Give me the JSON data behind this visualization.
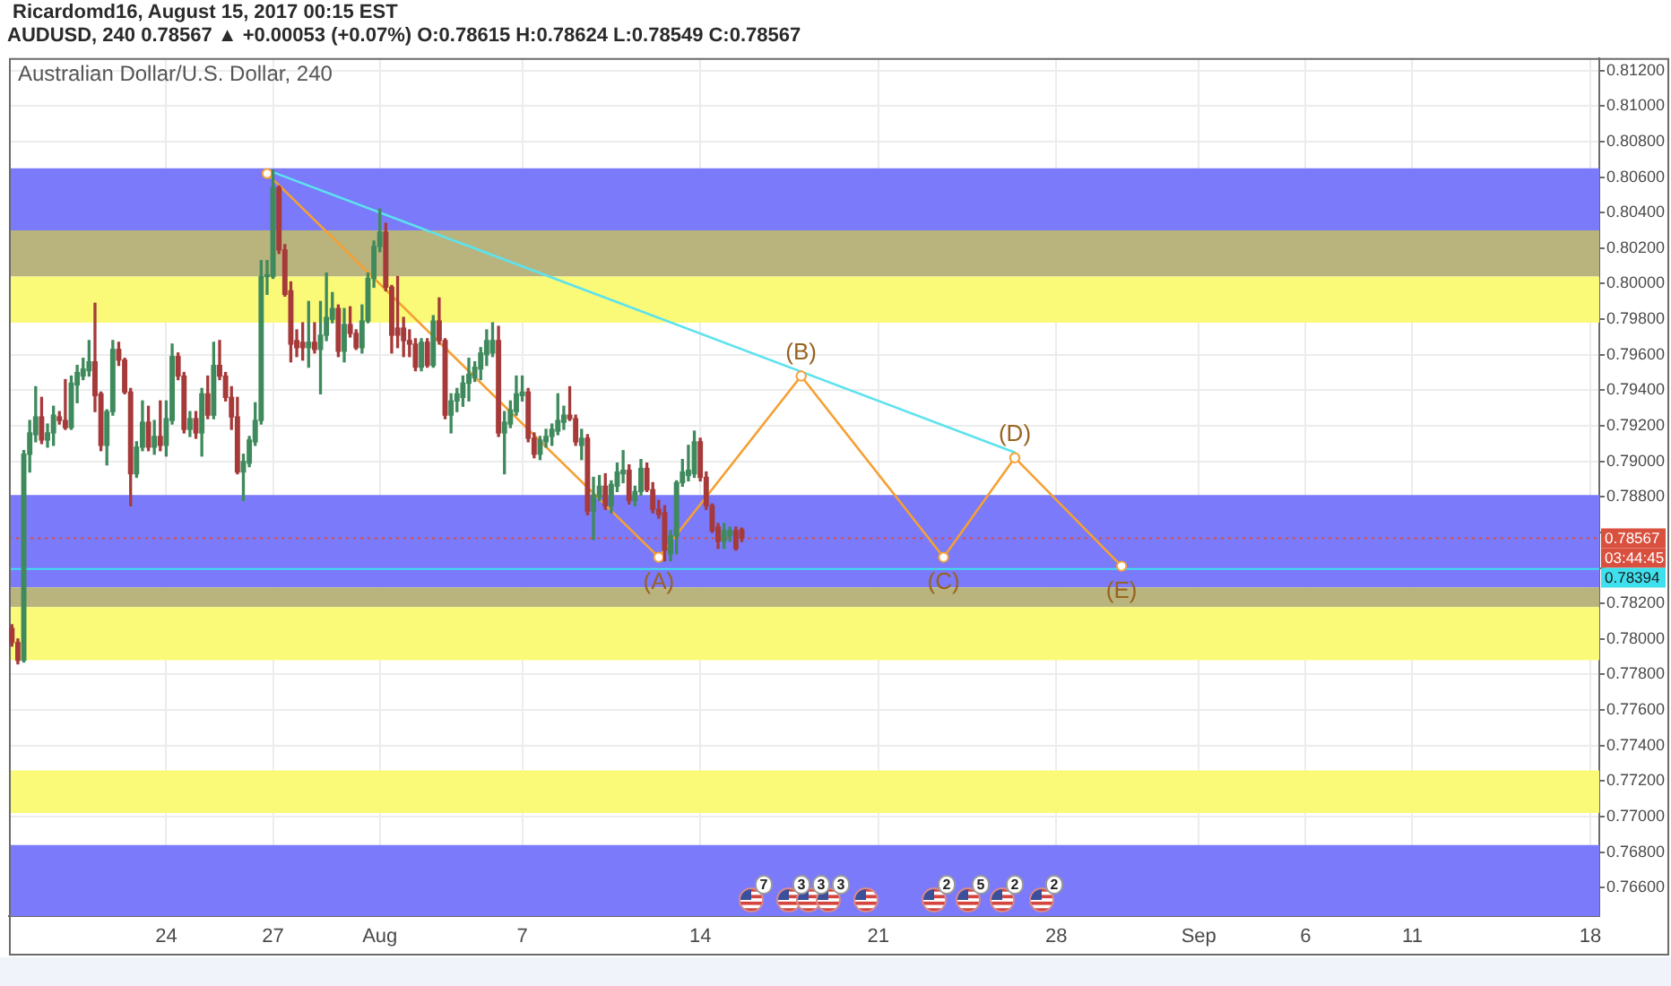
{
  "chart_data": {
    "type": "candlestick",
    "title": "Ricardomd16, August 15, 2017 00:15 EST",
    "subtitle": "AUDUSD, 240 0.78567 ▲ +0.00053 (+0.07%) O:0.78615 H:0.78624 L:0.78549 C:0.78567",
    "categories": [
      null,
      null,
      null,
      null,
      null,
      null,
      null,
      null,
      null,
      null,
      null,
      null,
      null,
      null,
      null,
      null,
      null,
      null,
      null,
      null,
      null,
      null,
      null,
      null,
      null,
      null,
      "24",
      null,
      null,
      null,
      null,
      null,
      null,
      null,
      null,
      null,
      null,
      null,
      null,
      null,
      null,
      null,
      null,
      null,
      "27",
      null,
      null,
      null,
      null,
      null,
      null,
      null,
      null,
      null,
      null,
      null,
      null,
      null,
      null,
      null,
      null,
      null,
      "Aug",
      null,
      null,
      null,
      null,
      null,
      null,
      null,
      null,
      null,
      null,
      null,
      null,
      null,
      null,
      null,
      null,
      null,
      null,
      null,
      null,
      null,
      null,
      null,
      "7",
      null,
      null,
      null,
      null,
      null,
      null,
      null,
      null,
      null,
      null,
      null,
      null,
      null,
      null,
      null,
      null,
      null,
      null,
      null,
      null,
      null,
      null,
      null,
      null,
      null,
      null,
      null,
      null,
      null,
      "14",
      null,
      null,
      null,
      null,
      null,
      null,
      null,
      null,
      null,
      null,
      null,
      null,
      null,
      null,
      null,
      null,
      null,
      null,
      null,
      null,
      null,
      null,
      null,
      null,
      null,
      null,
      null,
      null,
      null,
      "21",
      null,
      null,
      null,
      null,
      null,
      null,
      null,
      null,
      null,
      null,
      null,
      null,
      null,
      null,
      null,
      null,
      null,
      null,
      null,
      null,
      null,
      null,
      null,
      null,
      null,
      null,
      null,
      null,
      null,
      "28",
      null,
      null,
      null,
      null,
      null,
      null,
      null,
      null,
      null,
      null,
      null,
      null,
      null,
      null,
      null,
      null,
      null,
      null,
      null,
      null,
      null,
      null,
      null,
      "Sep",
      null,
      null,
      null,
      null,
      null,
      null,
      null,
      null,
      null,
      null,
      null,
      null,
      null,
      null,
      null,
      null,
      null,
      "6",
      null,
      null,
      null,
      null,
      null,
      null,
      null,
      null,
      null,
      null,
      null,
      null,
      null,
      null,
      null,
      null,
      null,
      "11",
      null,
      null,
      null,
      null,
      null,
      null,
      null,
      null,
      null,
      null,
      null,
      null,
      null,
      null,
      null,
      null,
      null,
      null,
      null,
      null,
      null,
      null,
      null,
      null,
      null,
      null,
      null,
      null,
      null,
      "18",
      null
    ],
    "ohlc": [
      [
        0.7806,
        0.7808,
        0.7796,
        0.7798
      ],
      [
        0.7798,
        0.78,
        0.7786,
        0.7788
      ],
      [
        0.7788,
        0.7906,
        0.7787,
        0.7904
      ],
      [
        0.7904,
        0.7923,
        0.7894,
        0.7916
      ],
      [
        0.7915,
        0.7942,
        0.7911,
        0.7925
      ],
      [
        0.7925,
        0.7936,
        0.791,
        0.7912
      ],
      [
        0.7912,
        0.7921,
        0.7908,
        0.7916
      ],
      [
        0.7916,
        0.7931,
        0.7909,
        0.7926
      ],
      [
        0.7925,
        0.7928,
        0.7921,
        0.7923
      ],
      [
        0.7923,
        0.7946,
        0.7918,
        0.7919
      ],
      [
        0.7919,
        0.7948,
        0.7918,
        0.7944
      ],
      [
        0.7943,
        0.7954,
        0.7933,
        0.795
      ],
      [
        0.7948,
        0.7958,
        0.7946,
        0.7952
      ],
      [
        0.7951,
        0.7968,
        0.7948,
        0.7956
      ],
      [
        0.7956,
        0.7989,
        0.7928,
        0.7937
      ],
      [
        0.7938,
        0.7939,
        0.7906,
        0.7909
      ],
      [
        0.7909,
        0.7929,
        0.7898,
        0.7928
      ],
      [
        0.7928,
        0.7968,
        0.7926,
        0.7963
      ],
      [
        0.7963,
        0.7967,
        0.7954,
        0.7957
      ],
      [
        0.7957,
        0.7958,
        0.7938,
        0.7939
      ],
      [
        0.7939,
        0.7941,
        0.7875,
        0.7893
      ],
      [
        0.7893,
        0.7911,
        0.7891,
        0.7908
      ],
      [
        0.7908,
        0.7934,
        0.7906,
        0.7922
      ],
      [
        0.7922,
        0.7931,
        0.7906,
        0.7908
      ],
      [
        0.7908,
        0.7923,
        0.7904,
        0.7914
      ],
      [
        0.7914,
        0.7934,
        0.7906,
        0.7909
      ],
      [
        0.7909,
        0.7934,
        0.7903,
        0.7924
      ],
      [
        0.7923,
        0.7966,
        0.7921,
        0.7959
      ],
      [
        0.7959,
        0.7961,
        0.7946,
        0.7948
      ],
      [
        0.7948,
        0.795,
        0.7916,
        0.7918
      ],
      [
        0.7918,
        0.7928,
        0.7914,
        0.7924
      ],
      [
        0.7924,
        0.7928,
        0.7913,
        0.7916
      ],
      [
        0.7916,
        0.7941,
        0.7903,
        0.7938
      ],
      [
        0.7938,
        0.7948,
        0.7924,
        0.7926
      ],
      [
        0.7926,
        0.7967,
        0.7924,
        0.7954
      ],
      [
        0.7954,
        0.7968,
        0.7946,
        0.7948
      ],
      [
        0.7948,
        0.795,
        0.7934,
        0.7936
      ],
      [
        0.7936,
        0.7942,
        0.7918,
        0.7925
      ],
      [
        0.7925,
        0.7936,
        0.7893,
        0.7894
      ],
      [
        0.7894,
        0.7904,
        0.7878,
        0.79
      ],
      [
        0.7899,
        0.7914,
        0.7897,
        0.7912
      ],
      [
        0.7911,
        0.7933,
        0.7909,
        0.7923
      ],
      [
        0.7923,
        0.8013,
        0.7921,
        0.8004
      ],
      [
        0.8004,
        0.8013,
        0.7994,
        0.8005
      ],
      [
        0.8004,
        0.8064,
        0.8003,
        0.8054
      ],
      [
        0.8054,
        0.8055,
        0.8017,
        0.8019
      ],
      [
        0.8019,
        0.8022,
        0.7993,
        0.7994
      ],
      [
        0.7996,
        0.8001,
        0.7956,
        0.7966
      ],
      [
        0.7968,
        0.7974,
        0.7959,
        0.7964
      ],
      [
        0.7967,
        0.7978,
        0.7957,
        0.7964
      ],
      [
        0.7964,
        0.799,
        0.7953,
        0.7967
      ],
      [
        0.7967,
        0.7978,
        0.7961,
        0.7963
      ],
      [
        0.7963,
        0.799,
        0.7938,
        0.7971
      ],
      [
        0.7971,
        0.8006,
        0.7968,
        0.7981
      ],
      [
        0.798,
        0.7995,
        0.7978,
        0.7986
      ],
      [
        0.7986,
        0.7988,
        0.7959,
        0.7962
      ],
      [
        0.7962,
        0.7986,
        0.7956,
        0.7977
      ],
      [
        0.7977,
        0.7987,
        0.797,
        0.7972
      ],
      [
        0.7972,
        0.7974,
        0.7963,
        0.7964
      ],
      [
        0.7964,
        0.7988,
        0.7961,
        0.7979
      ],
      [
        0.7979,
        0.8006,
        0.7978,
        0.8003
      ],
      [
        0.8003,
        0.8024,
        0.7998,
        0.8021
      ],
      [
        0.8021,
        0.8042,
        0.8018,
        0.8029
      ],
      [
        0.8029,
        0.8034,
        0.7996,
        0.7998
      ],
      [
        0.7998,
        0.7999,
        0.7961,
        0.7971
      ],
      [
        0.7975,
        0.8004,
        0.7964,
        0.7971
      ],
      [
        0.7975,
        0.7981,
        0.7959,
        0.7968
      ],
      [
        0.7968,
        0.7974,
        0.7959,
        0.7966
      ],
      [
        0.7966,
        0.7969,
        0.7951,
        0.7953
      ],
      [
        0.7953,
        0.7969,
        0.7951,
        0.7967
      ],
      [
        0.7967,
        0.7969,
        0.7953,
        0.7954
      ],
      [
        0.7954,
        0.7982,
        0.7953,
        0.7979
      ],
      [
        0.7979,
        0.7992,
        0.7966,
        0.7968
      ],
      [
        0.7968,
        0.7969,
        0.7924,
        0.7926
      ],
      [
        0.7926,
        0.7938,
        0.7916,
        0.7934
      ],
      [
        0.7934,
        0.7941,
        0.7928,
        0.7938
      ],
      [
        0.7936,
        0.7948,
        0.7931,
        0.7944
      ],
      [
        0.7944,
        0.7958,
        0.7934,
        0.7949
      ],
      [
        0.7947,
        0.7956,
        0.7945,
        0.7953
      ],
      [
        0.7952,
        0.7964,
        0.7946,
        0.7961
      ],
      [
        0.796,
        0.7974,
        0.7954,
        0.7968
      ],
      [
        0.7961,
        0.7978,
        0.7959,
        0.7968
      ],
      [
        0.7968,
        0.7976,
        0.7914,
        0.7916
      ],
      [
        0.7916,
        0.7928,
        0.7893,
        0.7922
      ],
      [
        0.7921,
        0.7934,
        0.7919,
        0.7929
      ],
      [
        0.7928,
        0.7948,
        0.7926,
        0.7938
      ],
      [
        0.7937,
        0.7948,
        0.7934,
        0.7939
      ],
      [
        0.7939,
        0.7941,
        0.7911,
        0.7913
      ],
      [
        0.7913,
        0.7916,
        0.7902,
        0.7904
      ],
      [
        0.7904,
        0.7914,
        0.7901,
        0.7912
      ],
      [
        0.7911,
        0.7918,
        0.7908,
        0.7914
      ],
      [
        0.7914,
        0.7921,
        0.7909,
        0.7918
      ],
      [
        0.7917,
        0.7938,
        0.7915,
        0.7923
      ],
      [
        0.7922,
        0.7931,
        0.7918,
        0.7926
      ],
      [
        0.7926,
        0.7942,
        0.7923,
        0.7924
      ],
      [
        0.7924,
        0.7926,
        0.7909,
        0.7911
      ],
      [
        0.7909,
        0.7918,
        0.7901,
        0.7913
      ],
      [
        0.7913,
        0.7915,
        0.787,
        0.7872
      ],
      [
        0.7872,
        0.7891,
        0.7856,
        0.7881
      ],
      [
        0.788,
        0.7892,
        0.7878,
        0.7886
      ],
      [
        0.7886,
        0.7893,
        0.7873,
        0.7875
      ],
      [
        0.7875,
        0.7889,
        0.7871,
        0.7887
      ],
      [
        0.7886,
        0.7899,
        0.7883,
        0.7894
      ],
      [
        0.7893,
        0.7906,
        0.7888,
        0.7895
      ],
      [
        0.7895,
        0.7898,
        0.7876,
        0.7878
      ],
      [
        0.7878,
        0.7886,
        0.7875,
        0.7883
      ],
      [
        0.7883,
        0.7901,
        0.7881,
        0.7896
      ],
      [
        0.7896,
        0.7899,
        0.7883,
        0.7884
      ],
      [
        0.7884,
        0.7888,
        0.7871,
        0.7873
      ],
      [
        0.7873,
        0.7878,
        0.7868,
        0.787
      ],
      [
        0.7871,
        0.7875,
        0.7844,
        0.785
      ],
      [
        0.7848,
        0.7861,
        0.7844,
        0.7858
      ],
      [
        0.7858,
        0.7889,
        0.7848,
        0.7888
      ],
      [
        0.7888,
        0.7901,
        0.7886,
        0.7894
      ],
      [
        0.7892,
        0.7909,
        0.7889,
        0.7895
      ],
      [
        0.7893,
        0.7917,
        0.7891,
        0.7911
      ],
      [
        0.7911,
        0.7913,
        0.7889,
        0.7891
      ],
      [
        0.7891,
        0.7894,
        0.7873,
        0.7875
      ],
      [
        0.7875,
        0.7876,
        0.786,
        0.7861
      ],
      [
        0.7863,
        0.7865,
        0.7851,
        0.7855
      ],
      [
        0.7855,
        0.7865,
        0.7851,
        0.7861
      ],
      [
        0.7858,
        0.7863,
        0.7855,
        0.7861
      ],
      [
        0.7861,
        0.7863,
        0.785,
        0.7851
      ],
      [
        0.78615,
        0.78624,
        0.78549,
        0.78567
      ],
      null,
      null,
      null,
      null,
      null,
      null,
      null,
      null,
      null,
      null,
      null,
      null,
      null,
      null,
      null,
      null,
      null,
      null,
      null,
      null,
      null,
      null,
      null,
      null,
      null,
      null,
      null,
      null,
      null,
      null,
      null,
      null,
      null,
      null,
      null,
      null,
      null,
      null,
      null,
      null,
      null,
      null,
      null,
      null,
      null,
      null,
      null,
      null,
      null,
      null,
      null,
      null,
      null,
      null,
      null,
      null,
      null,
      null,
      null,
      null,
      null,
      null,
      null,
      null,
      null,
      null,
      null,
      null,
      null,
      null,
      null,
      null,
      null,
      null,
      null,
      null,
      null,
      null,
      null,
      null,
      null,
      null,
      null,
      null,
      null,
      null,
      null,
      null,
      null,
      null,
      null,
      null,
      null,
      null,
      null,
      null,
      null,
      null,
      null,
      null,
      null,
      null,
      null,
      null,
      null,
      null,
      null,
      null,
      null,
      null,
      null,
      null,
      null,
      null,
      null,
      null,
      null,
      null,
      null,
      null,
      null,
      null,
      null,
      null,
      null,
      null,
      null,
      null,
      null,
      null,
      null,
      null,
      null,
      null,
      null,
      null,
      null,
      null,
      null,
      null,
      null,
      null,
      null,
      null
    ],
    "colors": [
      "#a63a3a",
      "#a63a3a",
      "#3f8a5c",
      "#3f8a5c",
      "#3f8a5c",
      "#a63a3a",
      "#3f8a5c",
      "#3f8a5c",
      "#a63a3a",
      "#a63a3a",
      "#3f8a5c",
      "#3f8a5c",
      "#3f8a5c",
      "#3f8a5c",
      "#a63a3a",
      "#a63a3a",
      "#3f8a5c",
      "#3f8a5c",
      "#a63a3a",
      "#a63a3a",
      "#a63a3a",
      "#3f8a5c",
      "#3f8a5c",
      "#a63a3a",
      "#3f8a5c",
      "#a63a3a",
      "#3f8a5c",
      "#3f8a5c",
      "#a63a3a",
      "#a63a3a",
      "#3f8a5c",
      "#a63a3a",
      "#3f8a5c",
      "#a63a3a",
      "#3f8a5c",
      "#a63a3a",
      "#a63a3a",
      "#a63a3a",
      "#a63a3a",
      "#3f8a5c",
      "#3f8a5c",
      "#3f8a5c",
      "#3f8a5c",
      "#3f8a5c",
      "#3f8a5c",
      "#a63a3a",
      "#a63a3a",
      "#a63a3a",
      "#a63a3a",
      "#a63a3a",
      "#3f8a5c",
      "#a63a3a",
      "#3f8a5c",
      "#3f8a5c",
      "#3f8a5c",
      "#a63a3a",
      "#3f8a5c",
      "#a63a3a",
      "#a63a3a",
      "#3f8a5c",
      "#3f8a5c",
      "#3f8a5c",
      "#3f8a5c",
      "#a63a3a",
      "#a63a3a",
      "#a63a3a",
      "#a63a3a",
      "#a63a3a",
      "#a63a3a",
      "#3f8a5c",
      "#a63a3a",
      "#3f8a5c",
      "#a63a3a",
      "#a63a3a",
      "#3f8a5c",
      "#3f8a5c",
      "#3f8a5c",
      "#3f8a5c",
      "#3f8a5c",
      "#3f8a5c",
      "#3f8a5c",
      "#3f8a5c",
      "#a63a3a",
      "#3f8a5c",
      "#3f8a5c",
      "#3f8a5c",
      "#3f8a5c",
      "#a63a3a",
      "#a63a3a",
      "#3f8a5c",
      "#3f8a5c",
      "#3f8a5c",
      "#3f8a5c",
      "#3f8a5c",
      "#a63a3a",
      "#a63a3a",
      "#3f8a5c",
      "#a63a3a",
      "#3f8a5c",
      "#3f8a5c",
      "#a63a3a",
      "#3f8a5c",
      "#3f8a5c",
      "#3f8a5c",
      "#a63a3a",
      "#3f8a5c",
      "#3f8a5c",
      "#a63a3a",
      "#a63a3a",
      "#a63a3a",
      "#a63a3a",
      "#3f8a5c",
      "#3f8a5c",
      "#3f8a5c",
      "#3f8a5c",
      "#3f8a5c",
      "#a63a3a",
      "#a63a3a",
      "#a63a3a",
      "#a63a3a",
      "#3f8a5c",
      "#3f8a5c",
      "#a63a3a",
      "#a63a3a",
      null,
      null,
      null,
      null,
      null,
      null,
      null,
      null,
      null,
      null,
      null,
      null,
      null,
      null,
      null,
      null,
      null,
      null,
      null,
      null,
      null,
      null,
      null,
      null,
      null,
      null,
      null,
      null,
      null,
      null,
      null,
      null,
      null,
      null,
      null,
      null,
      null,
      null,
      null,
      null,
      null,
      null,
      null,
      null,
      null,
      null,
      null,
      null,
      null,
      null,
      null,
      null,
      null,
      null,
      null,
      null,
      null,
      null,
      null,
      null,
      null,
      null,
      null,
      null,
      null,
      null,
      null,
      null,
      null,
      null,
      null,
      null,
      null,
      null,
      null,
      null,
      null,
      null,
      null,
      null,
      null,
      null,
      null,
      null,
      null,
      null,
      null,
      null,
      null,
      null,
      null,
      null,
      null,
      null,
      null,
      null,
      null,
      null,
      null,
      null,
      null,
      null,
      null,
      null,
      null,
      null,
      null,
      null,
      null,
      null,
      null,
      null,
      null,
      null,
      null,
      null,
      null,
      null,
      null,
      null,
      null,
      null,
      null,
      null,
      null,
      null,
      null,
      null,
      null,
      null,
      null,
      null,
      null,
      null,
      null,
      null,
      null,
      null,
      null,
      null,
      null,
      null,
      null,
      null
    ],
    "series": [
      {
        "type": "line",
        "color": "#f5a033",
        "marker": "circle",
        "values": [
          null,
          null,
          null,
          null,
          null,
          null,
          null,
          null,
          null,
          null,
          null,
          null,
          null,
          null,
          null,
          null,
          null,
          null,
          null,
          null,
          null,
          null,
          null,
          null,
          null,
          null,
          null,
          null,
          null,
          null,
          null,
          null,
          null,
          null,
          null,
          null,
          null,
          null,
          null,
          null,
          null,
          null,
          null,
          0.8062,
          null,
          null,
          null,
          null,
          null,
          null,
          null,
          null,
          null,
          null,
          null,
          null,
          null,
          null,
          null,
          null,
          null,
          null,
          null,
          null,
          null,
          null,
          null,
          null,
          null,
          null,
          null,
          null,
          null,
          null,
          null,
          null,
          null,
          null,
          null,
          null,
          null,
          null,
          null,
          null,
          null,
          null,
          null,
          null,
          null,
          null,
          null,
          null,
          null,
          null,
          null,
          null,
          null,
          null,
          null,
          null,
          null,
          null,
          null,
          null,
          null,
          null,
          null,
          null,
          null,
          0.7846,
          null,
          null,
          null,
          null,
          null,
          null,
          null,
          null,
          null,
          null,
          null,
          null,
          null,
          null,
          null,
          null,
          null,
          null,
          null,
          null,
          null,
          null,
          null,
          0.7948,
          null,
          null,
          null,
          null,
          null,
          null,
          null,
          null,
          null,
          null,
          null,
          null,
          null,
          null,
          null,
          null,
          null,
          null,
          null,
          null,
          null,
          null,
          null,
          0.7846,
          null,
          null,
          null,
          null,
          null,
          null,
          null,
          null,
          null,
          null,
          null,
          0.7902,
          null,
          null,
          null,
          null,
          null,
          null,
          null,
          null,
          null,
          null,
          null,
          null,
          null,
          null,
          null,
          null,
          null,
          0.7841,
          null,
          null,
          null,
          null,
          null,
          null,
          null,
          null,
          null,
          null,
          null,
          null,
          null,
          null,
          null,
          null,
          null,
          null,
          null,
          null,
          null,
          null,
          null,
          null,
          null,
          null,
          null,
          null,
          null,
          null,
          null,
          null,
          null,
          null,
          null,
          null,
          null,
          null,
          null,
          null,
          null,
          null,
          null,
          null,
          null,
          null,
          null,
          null,
          null,
          null,
          null,
          null,
          null,
          null,
          null,
          null,
          null,
          null,
          null,
          null,
          null,
          null,
          null,
          null,
          null,
          null,
          null,
          null,
          null,
          null,
          null,
          null,
          null,
          null,
          null,
          null,
          null,
          null,
          null,
          null
        ]
      },
      {
        "type": "line",
        "color": "#5ee2ee",
        "values": [
          null,
          null,
          null,
          null,
          null,
          null,
          null,
          null,
          null,
          null,
          null,
          null,
          null,
          null,
          null,
          null,
          null,
          null,
          null,
          null,
          null,
          null,
          null,
          null,
          null,
          null,
          null,
          null,
          null,
          null,
          null,
          null,
          null,
          null,
          null,
          null,
          null,
          null,
          null,
          null,
          null,
          null,
          null,
          0.8064,
          null,
          null,
          null,
          null,
          null,
          null,
          null,
          null,
          null,
          null,
          null,
          null,
          null,
          null,
          null,
          null,
          null,
          null,
          null,
          null,
          null,
          null,
          null,
          null,
          null,
          null,
          null,
          null,
          null,
          null,
          null,
          null,
          null,
          null,
          null,
          null,
          null,
          null,
          null,
          null,
          null,
          null,
          null,
          null,
          null,
          null,
          null,
          null,
          null,
          null,
          null,
          null,
          null,
          null,
          null,
          null,
          null,
          null,
          null,
          null,
          null,
          null,
          null,
          null,
          null,
          null,
          null,
          null,
          null,
          null,
          null,
          null,
          null,
          null,
          null,
          null,
          null,
          null,
          null,
          null,
          null,
          null,
          null,
          null,
          null,
          null,
          null,
          null,
          null,
          null,
          null,
          null,
          null,
          null,
          null,
          null,
          null,
          null,
          null,
          null,
          null,
          null,
          null,
          null,
          null,
          null,
          null,
          null,
          null,
          null,
          null,
          null,
          null,
          null,
          null,
          null,
          null,
          null,
          null,
          null,
          null,
          null,
          null,
          null,
          null,
          0.7905,
          null,
          null,
          null,
          null,
          null,
          null,
          null,
          null,
          null,
          null,
          null,
          null,
          null,
          null,
          null,
          null,
          null,
          null,
          null,
          null,
          null,
          null,
          null,
          null,
          null,
          null,
          null,
          null,
          null,
          null,
          null,
          null,
          null,
          null,
          null,
          null,
          null,
          null,
          null,
          null,
          null,
          null,
          null,
          null,
          null,
          null,
          null,
          null,
          null,
          null,
          null,
          null,
          null,
          null,
          null,
          null,
          null,
          null,
          null,
          null,
          null,
          null,
          null,
          null,
          null,
          null,
          null,
          null,
          null,
          null,
          null,
          null,
          null,
          null,
          null,
          null,
          null,
          null,
          null,
          null,
          null,
          null,
          null,
          null,
          null,
          null,
          null,
          null,
          null,
          null,
          null,
          null,
          null,
          null,
          null,
          null,
          null,
          null
        ]
      }
    ],
    "ylim": [
      0.7644,
      0.8127
    ],
    "yticks": [
      {
        "value": 0.766,
        "label": "0.76600"
      },
      {
        "value": 0.768,
        "label": "0.76800"
      },
      {
        "value": 0.77,
        "label": "0.77000"
      },
      {
        "value": 0.772,
        "label": "0.77200"
      },
      {
        "value": 0.774,
        "label": "0.77400"
      },
      {
        "value": 0.776,
        "label": "0.77600"
      },
      {
        "value": 0.778,
        "label": "0.77800"
      },
      {
        "value": 0.78,
        "label": "0.78000"
      },
      {
        "value": 0.782,
        "label": "0.78200"
      },
      {
        "value": 0.784,
        "label": null
      },
      {
        "value": 0.786,
        "label": null
      },
      {
        "value": 0.788,
        "label": "0.78800"
      },
      {
        "value": 0.79,
        "label": "0.79000"
      },
      {
        "value": 0.792,
        "label": "0.79200"
      },
      {
        "value": 0.794,
        "label": "0.79400"
      },
      {
        "value": 0.796,
        "label": "0.79600"
      },
      {
        "value": 0.798,
        "label": "0.79800"
      },
      {
        "value": 0.8,
        "label": "0.80000"
      },
      {
        "value": 0.802,
        "label": "0.80200"
      },
      {
        "value": 0.804,
        "label": "0.80400"
      },
      {
        "value": 0.806,
        "label": "0.80600"
      },
      {
        "value": 0.808,
        "label": "0.80800"
      },
      {
        "value": 0.81,
        "label": "0.81000"
      },
      {
        "value": 0.812,
        "label": "0.81200"
      }
    ],
    "bands": [
      {
        "axis": "y",
        "from": 0.803,
        "to": 0.8065,
        "color": "#7a7afa"
      },
      {
        "axis": "y",
        "from": 0.8004,
        "to": 0.803,
        "color": "#b9b47d"
      },
      {
        "axis": "y",
        "from": 0.7978,
        "to": 0.8004,
        "color": "#fafa78"
      },
      {
        "axis": "y",
        "from": 0.7829,
        "to": 0.7881,
        "color": "#7a7afa"
      },
      {
        "axis": "y",
        "from": 0.7818,
        "to": 0.7829,
        "color": "#b9b47d"
      },
      {
        "axis": "y",
        "from": 0.7788,
        "to": 0.7818,
        "color": "#fafa78"
      },
      {
        "axis": "y",
        "from": 0.7702,
        "to": 0.7726,
        "color": "#fafa78"
      },
      {
        "axis": "y",
        "from": 0.7644,
        "to": 0.7684,
        "color": "#7a7afa"
      }
    ],
    "ref_lines": [
      {
        "axis": "y",
        "value": 0.78567,
        "label": "0.78567",
        "color": "#d9503f",
        "line_style": "dotted"
      },
      {
        "axis": "y",
        "value": 0.78394,
        "label": "0.78394",
        "color": "#3fe0ee"
      }
    ],
    "annotations": [
      "Australian Dollar/U.S. Dollar, 240",
      "03:44:45",
      "7",
      "3",
      "3",
      "3",
      "2",
      "5",
      "2",
      "2",
      {
        "text": "(A)",
        "y": 0.7846
      },
      {
        "text": "(B)",
        "y": 0.7948
      },
      {
        "text": "(C)",
        "y": 0.7846
      },
      {
        "text": "(D)",
        "y": 0.7902
      },
      {
        "text": "(E)",
        "y": 0.7841
      }
    ],
    "grid": true
  }
}
